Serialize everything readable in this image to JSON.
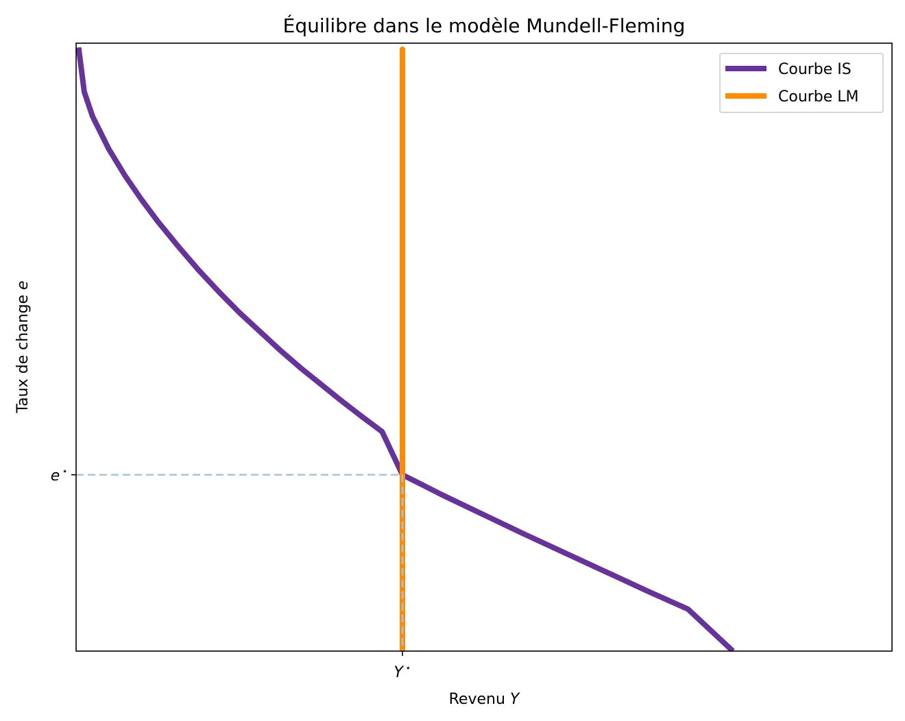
{
  "chart_data": {
    "type": "line",
    "title": "Équilibre dans le modèle Mundell-Fleming",
    "xlabel": "Revenu ",
    "xlabel_var": "Y",
    "ylabel": "Taux de change ",
    "ylabel_var": "e",
    "xlim": [
      0,
      100
    ],
    "ylim": [
      0,
      100
    ],
    "xticks": [
      {
        "value": 40,
        "label": "Y",
        "sup": "⋆"
      }
    ],
    "yticks": [
      {
        "value": 29,
        "label": "e",
        "sup": "⋆"
      }
    ],
    "grid": false,
    "legend_position": "top-right",
    "series": [
      {
        "name": "Courbe IS",
        "color": "#663399",
        "x": [
          0.3,
          1,
          2,
          4,
          6,
          8,
          10,
          12.5,
          15,
          17.5,
          20,
          22.5,
          25,
          27.5,
          30,
          32.5,
          35,
          37.5,
          40,
          42.5,
          45,
          47.5,
          50,
          55,
          60,
          65,
          70,
          75,
          80.5
        ],
        "y": [
          99.3,
          92,
          88,
          82.6,
          78.2,
          74.3,
          70.7,
          66.6,
          62.7,
          59.1,
          55.7,
          52.6,
          49.5,
          46.6,
          43.9,
          41.2,
          38.6,
          36.1,
          29,
          27.3,
          25.6,
          24.0,
          22.4,
          19.2,
          16.1,
          13.0,
          9.9,
          6.9,
          0
        ]
      },
      {
        "name": "Courbe LM",
        "color": "#ff8c00",
        "x": [
          40,
          40
        ],
        "y": [
          0,
          99
        ]
      }
    ],
    "equilibrium": {
      "x": 40,
      "y": 29,
      "guide_color": "#a9c4d9"
    }
  }
}
